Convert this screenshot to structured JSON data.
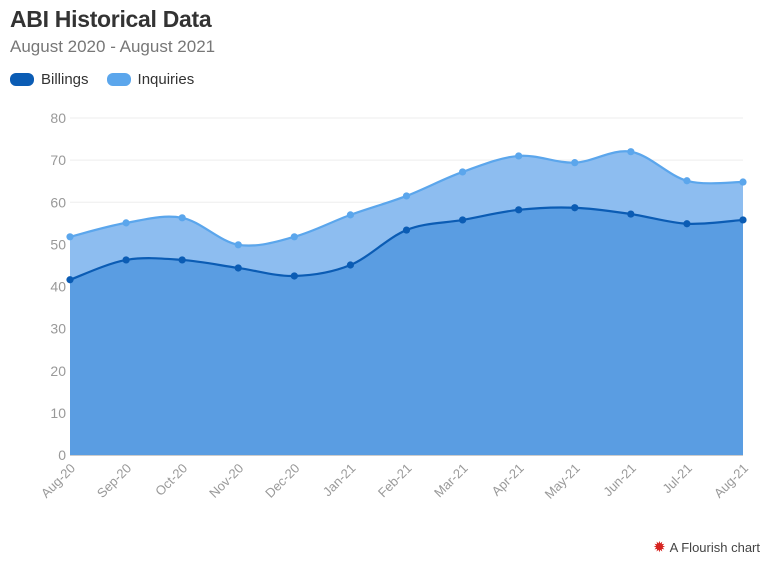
{
  "header": {
    "title": "ABI Historical Data",
    "subtitle": "August 2020 - August 2021"
  },
  "credit": {
    "icon": "flourish-logo-icon",
    "text": "A Flourish chart"
  },
  "chart_data": {
    "type": "area",
    "title": "ABI Historical Data",
    "subtitle": "August 2020 - August 2021",
    "categories": [
      "Aug-20",
      "Sep-20",
      "Oct-20",
      "Nov-20",
      "Dec-20",
      "Jan-21",
      "Feb-21",
      "Mar-21",
      "Apr-21",
      "May-21",
      "Jun-21",
      "Jul-21",
      "Aug-21"
    ],
    "series": [
      {
        "name": "Billings",
        "color": "#0b5cb4",
        "fill": "#5a9de2",
        "values": [
          41.6,
          46.3,
          46.3,
          44.4,
          42.5,
          45.1,
          53.4,
          55.8,
          58.2,
          58.7,
          57.2,
          54.9,
          55.8
        ]
      },
      {
        "name": "Inquiries",
        "color": "#5ba6ec",
        "fill": "#8dbdf0",
        "values": [
          51.8,
          55.1,
          56.3,
          49.9,
          51.8,
          57.0,
          61.5,
          67.2,
          71.0,
          69.4,
          72.0,
          65.1,
          64.8
        ]
      }
    ],
    "ylim": [
      0,
      80
    ],
    "yticks": [
      0,
      10,
      20,
      30,
      40,
      50,
      60,
      70,
      80
    ],
    "grid": true,
    "legend": "top-left",
    "xlabel": "",
    "ylabel": ""
  }
}
